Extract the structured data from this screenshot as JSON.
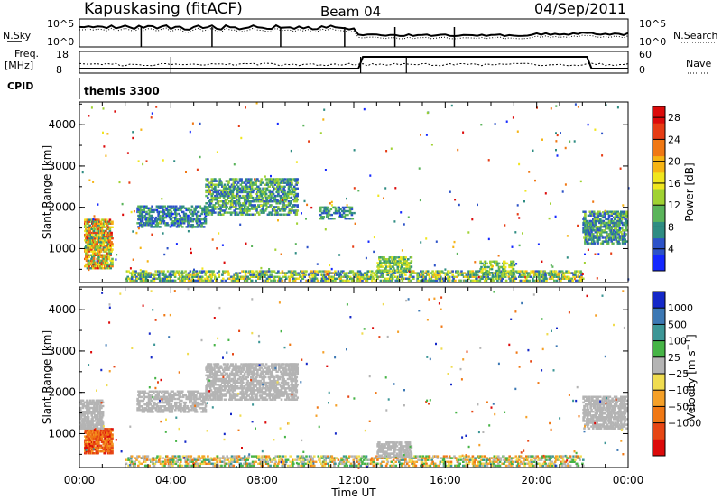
{
  "header": {
    "station": "Kapuskasing (fitACF)",
    "beam": "Beam 04",
    "date": "04/Sep/2011"
  },
  "status_panels": {
    "nsky_label": "N.Sky",
    "nsky_ticks": [
      "10^5",
      "10^0"
    ],
    "nsearch_ticks": [
      "10^5",
      "10^0"
    ],
    "nsearch_label": "N.Search",
    "freq_label": "Freq.",
    "freq_unit": "[MHz]",
    "freq_ticks": [
      "18",
      "8"
    ],
    "nave_ticks": [
      "60",
      "0"
    ],
    "nave_label": "Nave",
    "cpid_label": "CPID",
    "cpid_value": "themis 3300"
  },
  "chart_data": [
    {
      "type": "heatmap",
      "title": "",
      "xlabel": "Time UT",
      "ylabel": "Slant Range [km]",
      "x_ticks": [
        "00:00",
        "04:00",
        "08:00",
        "12:00",
        "16:00",
        "20:00",
        "00:00"
      ],
      "xlim_hours": [
        0,
        24
      ],
      "y_ticks": [
        "1000",
        "2000",
        "3000",
        "4000"
      ],
      "ylim": [
        180,
        4550
      ],
      "colorbar": {
        "label": "Power [dB]",
        "ticks": [
          "4",
          "8",
          "12",
          "16",
          "20",
          "24",
          "28"
        ],
        "range": [
          0,
          30
        ],
        "colors": [
          "#1428ff",
          "#2c52c8",
          "#2e8c82",
          "#5ab45a",
          "#a0d232",
          "#f0e61e",
          "#f6b414",
          "#f07814",
          "#e63c14",
          "#dc0a0a"
        ]
      },
      "regions": [
        {
          "t0": 0.2,
          "t1": 1.4,
          "r0": 500,
          "r1": 1700,
          "val_lo": 6,
          "val_hi": 28,
          "density": 0.55
        },
        {
          "t0": 2.5,
          "t1": 5.5,
          "r0": 1500,
          "r1": 2000,
          "val_lo": 2,
          "val_hi": 12,
          "density": 0.35
        },
        {
          "t0": 5.5,
          "t1": 9.5,
          "r0": 1800,
          "r1": 2700,
          "val_lo": 3,
          "val_hi": 15,
          "density": 0.35
        },
        {
          "t0": 10.5,
          "t1": 12.0,
          "r0": 1700,
          "r1": 2000,
          "val_lo": 3,
          "val_hi": 12,
          "density": 0.3
        },
        {
          "t0": 2.0,
          "t1": 22.0,
          "r0": 200,
          "r1": 450,
          "val_lo": 3,
          "val_hi": 20,
          "density": 0.35
        },
        {
          "t0": 13.0,
          "t1": 14.5,
          "r0": 400,
          "r1": 800,
          "val_lo": 6,
          "val_hi": 18,
          "density": 0.4
        },
        {
          "t0": 17.5,
          "t1": 19.0,
          "r0": 300,
          "r1": 700,
          "val_lo": 6,
          "val_hi": 18,
          "density": 0.3
        },
        {
          "t0": 22.0,
          "t1": 23.9,
          "r0": 1100,
          "r1": 1900,
          "val_lo": 3,
          "val_hi": 14,
          "density": 0.45
        }
      ]
    },
    {
      "type": "heatmap",
      "title": "",
      "xlabel": "Time UT",
      "ylabel": "Slant Range [km]",
      "x_ticks": [
        "00:00",
        "04:00",
        "08:00",
        "12:00",
        "16:00",
        "20:00",
        "00:00"
      ],
      "xlim_hours": [
        0,
        24
      ],
      "y_ticks": [
        "1000",
        "2000",
        "3000",
        "4000"
      ],
      "ylim": [
        180,
        4550
      ],
      "colorbar": {
        "label": "Velocity [m s^-1]",
        "ticks": [
          "1000",
          "500",
          "100",
          "25",
          "−25",
          "−100",
          "−500",
          "−1000"
        ],
        "colors": [
          "#1428c8",
          "#3c78b4",
          "#3c9696",
          "#46b446",
          "#b4b4b4",
          "#f0dc50",
          "#f5a028",
          "#f07814",
          "#e64614",
          "#dc0a0a"
        ]
      },
      "regions": [
        {
          "t0": 0.2,
          "t1": 1.4,
          "r0": 500,
          "r1": 1100,
          "val_lo": 6,
          "val_hi": 9,
          "density": 0.65
        },
        {
          "t0": 0.0,
          "t1": 1.0,
          "r0": 1100,
          "r1": 1800,
          "val_lo": 4,
          "val_hi": 4,
          "density": 0.5
        },
        {
          "t0": 2.5,
          "t1": 5.5,
          "r0": 1500,
          "r1": 2000,
          "val_lo": 4,
          "val_hi": 4,
          "density": 0.35
        },
        {
          "t0": 5.5,
          "t1": 9.5,
          "r0": 1800,
          "r1": 2700,
          "val_lo": 4,
          "val_hi": 4,
          "density": 0.45
        },
        {
          "t0": 2.0,
          "t1": 22.0,
          "r0": 200,
          "r1": 450,
          "val_lo": 2,
          "val_hi": 7,
          "density": 0.3
        },
        {
          "t0": 13.0,
          "t1": 14.5,
          "r0": 400,
          "r1": 800,
          "val_lo": 4,
          "val_hi": 4,
          "density": 0.45
        },
        {
          "t0": 22.0,
          "t1": 23.9,
          "r0": 1100,
          "r1": 1900,
          "val_lo": 4,
          "val_hi": 4,
          "density": 0.45
        }
      ]
    }
  ]
}
